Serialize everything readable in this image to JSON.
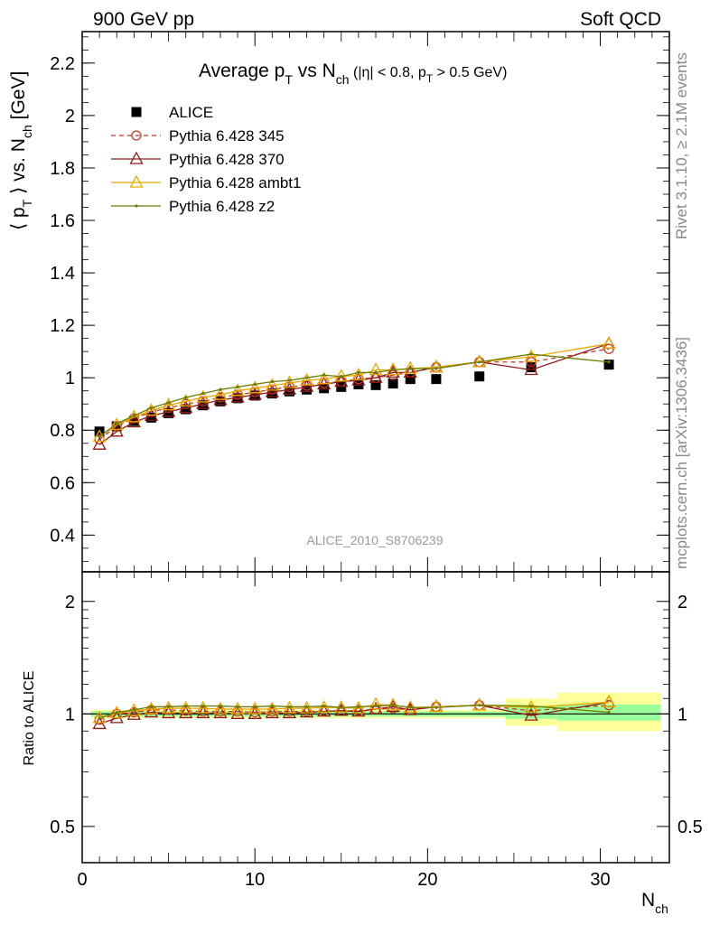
{
  "header": {
    "left": "900 GeV pp",
    "right": "Soft QCD"
  },
  "side_labels": {
    "top": "Rivet 3.1.10, ≥ 2.1M events",
    "bottom": "mcplots.cern.ch [arXiv:1306.3436]"
  },
  "watermark": "ALICE_2010_S8706239",
  "title": {
    "text": "Average p",
    "sub1": "T",
    "mid": " vs N",
    "sub2": "ch",
    "small": " (|η| < 0.8, p",
    "sub3": "T",
    "small2": " > 0.5 GeV)"
  },
  "ylabel_main": {
    "pre": "⟨ p",
    "sub1": "T",
    "mid": " ⟩ vs. N",
    "sub2": "ch",
    "post": " [GeV]"
  },
  "ylabel_ratio": "Ratio to ALICE",
  "xlabel": {
    "main": "N",
    "sub": "ch"
  },
  "chart_data": [
    {
      "type": "line",
      "panel": "main",
      "xlim": [
        0,
        34
      ],
      "ylim": [
        0.26,
        2.32
      ],
      "yticks": [
        0.4,
        0.6,
        0.8,
        1,
        1.2,
        1.4,
        1.6,
        1.8,
        2,
        2.2
      ],
      "ytick_labels": [
        "0.4",
        "0.6",
        "0.8",
        "1",
        "1.2",
        "1.4",
        "1.6",
        "1.8",
        "2",
        "2.2"
      ],
      "legend_position": "top-left",
      "series": [
        {
          "name": "ALICE",
          "color": "#000000",
          "marker": "square",
          "x": [
            1,
            2,
            3,
            4,
            5,
            6,
            7,
            8,
            9,
            10,
            11,
            12,
            13,
            14,
            15,
            16,
            17,
            18,
            19,
            20.5,
            23,
            26,
            30.5
          ],
          "y": [
            0.795,
            0.815,
            0.835,
            0.848,
            0.865,
            0.88,
            0.895,
            0.91,
            0.922,
            0.932,
            0.94,
            0.948,
            0.955,
            0.96,
            0.965,
            0.975,
            0.972,
            0.978,
            0.995,
            0.995,
            1.005,
            1.04,
            1.05
          ]
        },
        {
          "name": "Pythia 6.428 345",
          "color": "#c0392b",
          "marker": "circle",
          "dash": "5,4",
          "x": [
            1,
            2,
            3,
            4,
            5,
            6,
            7,
            8,
            9,
            10,
            11,
            12,
            13,
            14,
            15,
            16,
            17,
            18,
            19,
            20.5,
            23,
            26,
            30.5
          ],
          "y": [
            0.765,
            0.815,
            0.845,
            0.87,
            0.885,
            0.9,
            0.91,
            0.925,
            0.935,
            0.945,
            0.955,
            0.965,
            0.97,
            0.98,
            0.985,
            0.995,
            1.0,
            1.01,
            1.02,
            1.04,
            1.06,
            1.06,
            1.11
          ]
        },
        {
          "name": "Pythia 6.428 370",
          "color": "#8b1a1a",
          "marker": "triangle",
          "x": [
            1,
            2,
            3,
            4,
            5,
            6,
            7,
            8,
            9,
            10,
            11,
            12,
            13,
            14,
            15,
            16,
            17,
            18,
            19,
            20.5,
            23,
            26,
            30.5
          ],
          "y": [
            0.745,
            0.795,
            0.83,
            0.855,
            0.87,
            0.885,
            0.9,
            0.915,
            0.925,
            0.935,
            0.945,
            0.955,
            0.965,
            0.975,
            0.985,
            0.99,
            1.0,
            1.02,
            1.02,
            1.04,
            1.06,
            1.03,
            1.13
          ]
        },
        {
          "name": "Pythia 6.428 ambt1",
          "color": "#e6a800",
          "marker": "triangle",
          "x": [
            1,
            2,
            3,
            4,
            5,
            6,
            7,
            8,
            9,
            10,
            11,
            12,
            13,
            14,
            15,
            16,
            17,
            18,
            19,
            20.5,
            23,
            26,
            30.5
          ],
          "y": [
            0.775,
            0.82,
            0.85,
            0.875,
            0.895,
            0.91,
            0.925,
            0.935,
            0.95,
            0.96,
            0.97,
            0.98,
            0.99,
            0.995,
            1.005,
            1.01,
            1.03,
            1.03,
            1.035,
            1.04,
            1.06,
            1.08,
            1.13
          ]
        },
        {
          "name": "Pythia 6.428 z2",
          "color": "#6b7d00",
          "marker": "dot",
          "x": [
            1,
            2,
            3,
            4,
            5,
            6,
            7,
            8,
            9,
            10,
            11,
            12,
            13,
            14,
            15,
            16,
            17,
            18,
            19,
            20.5,
            23,
            26,
            30.5
          ],
          "y": [
            0.775,
            0.825,
            0.855,
            0.885,
            0.905,
            0.925,
            0.94,
            0.955,
            0.965,
            0.975,
            0.985,
            0.99,
            1.0,
            1.01,
            1.005,
            1.02,
            1.02,
            1.03,
            1.035,
            1.035,
            1.06,
            1.09,
            1.06
          ]
        }
      ]
    },
    {
      "type": "line",
      "panel": "ratio",
      "xlim": [
        0,
        34
      ],
      "ylim": [
        0.4,
        2.4
      ],
      "scale": "log",
      "yticks": [
        0.5,
        1,
        2
      ],
      "ytick_labels": [
        "0.5",
        "1",
        "2"
      ],
      "xticks": [
        0,
        10,
        20,
        30
      ],
      "xtick_labels": [
        "0",
        "10",
        "20",
        "30"
      ],
      "uncertainty_bands": [
        {
          "x0": 0.5,
          "x1": 24.5,
          "inner": [
            0.985,
            1.015
          ],
          "outer": [
            0.975,
            1.025
          ]
        },
        {
          "x0": 24.5,
          "x1": 27.5,
          "inner": [
            0.97,
            1.05
          ],
          "outer": [
            0.93,
            1.1
          ]
        },
        {
          "x0": 27.5,
          "x1": 33.5,
          "inner": [
            0.96,
            1.06
          ],
          "outer": [
            0.9,
            1.14
          ]
        }
      ],
      "series": [
        {
          "name": "Pythia 6.428 345",
          "color": "#c0392b",
          "marker": "circle",
          "dash": "5,4",
          "x": [
            1,
            2,
            3,
            4,
            5,
            6,
            7,
            8,
            9,
            10,
            11,
            12,
            13,
            14,
            15,
            16,
            17,
            18,
            19,
            20.5,
            23,
            26,
            30.5
          ],
          "y": [
            0.965,
            1.0,
            1.01,
            1.025,
            1.025,
            1.02,
            1.015,
            1.015,
            1.015,
            1.01,
            1.015,
            1.015,
            1.015,
            1.02,
            1.02,
            1.02,
            1.03,
            1.035,
            1.025,
            1.045,
            1.055,
            1.02,
            1.055
          ]
        },
        {
          "name": "Pythia 6.428 370",
          "color": "#8b1a1a",
          "marker": "triangle",
          "x": [
            1,
            2,
            3,
            4,
            5,
            6,
            7,
            8,
            9,
            10,
            11,
            12,
            13,
            14,
            15,
            16,
            17,
            18,
            19,
            20.5,
            23,
            26,
            30.5
          ],
          "y": [
            0.94,
            0.975,
            0.995,
            1.01,
            1.005,
            1.005,
            1.005,
            1.005,
            1.0,
            1.0,
            1.005,
            1.005,
            1.01,
            1.015,
            1.02,
            1.015,
            1.03,
            1.045,
            1.025,
            1.045,
            1.055,
            0.99,
            1.075
          ]
        },
        {
          "name": "Pythia 6.428 ambt1",
          "color": "#e6a800",
          "marker": "triangle",
          "x": [
            1,
            2,
            3,
            4,
            5,
            6,
            7,
            8,
            9,
            10,
            11,
            12,
            13,
            14,
            15,
            16,
            17,
            18,
            19,
            20.5,
            23,
            26,
            30.5
          ],
          "y": [
            0.975,
            1.005,
            1.02,
            1.03,
            1.035,
            1.035,
            1.035,
            1.03,
            1.03,
            1.03,
            1.03,
            1.035,
            1.035,
            1.04,
            1.04,
            1.035,
            1.06,
            1.055,
            1.04,
            1.045,
            1.055,
            1.04,
            1.075
          ]
        },
        {
          "name": "Pythia 6.428 z2",
          "color": "#6b7d00",
          "marker": "dot",
          "x": [
            1,
            2,
            3,
            4,
            5,
            6,
            7,
            8,
            9,
            10,
            11,
            12,
            13,
            14,
            15,
            16,
            17,
            18,
            19,
            20.5,
            23,
            26,
            30.5
          ],
          "y": [
            0.975,
            1.01,
            1.025,
            1.045,
            1.045,
            1.05,
            1.05,
            1.05,
            1.045,
            1.045,
            1.05,
            1.045,
            1.045,
            1.05,
            1.04,
            1.045,
            1.05,
            1.055,
            1.04,
            1.04,
            1.055,
            1.05,
            1.01
          ]
        }
      ]
    }
  ]
}
